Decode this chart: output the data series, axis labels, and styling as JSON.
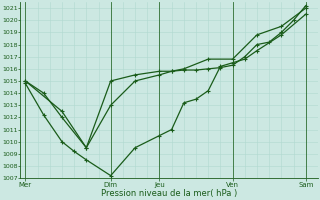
{
  "xlabel": "Pression niveau de la mer( hPa )",
  "background_color": "#cce8e2",
  "grid_color_minor": "#b0d8d0",
  "grid_color_major": "#2d6e30",
  "line_color": "#1a5c1a",
  "ylim": [
    1007,
    1021.5
  ],
  "ytick_min": 1007,
  "ytick_max": 1021,
  "xtick_labels": [
    "Mer",
    "Dim",
    "Jeu",
    "Ven",
    "Sam"
  ],
  "xtick_positions": [
    0,
    3.5,
    5.5,
    8.5,
    11.5
  ],
  "xlim": [
    -0.2,
    12.0
  ],
  "series": [
    {
      "x": [
        0,
        0.75,
        1.5,
        2.5,
        3.5,
        4.5,
        5.5,
        6.0,
        6.5,
        7.0,
        7.5,
        8.0,
        8.5,
        9.0,
        9.5,
        10.0,
        10.5,
        11.0,
        11.5
      ],
      "y": [
        1015.0,
        1014.0,
        1012.0,
        1009.5,
        1015.0,
        1015.5,
        1015.8,
        1015.8,
        1015.9,
        1015.9,
        1016.0,
        1016.1,
        1016.3,
        1017.0,
        1018.0,
        1018.2,
        1019.0,
        1020.0,
        1021.2
      ],
      "marker": "+"
    },
    {
      "x": [
        0,
        0.75,
        1.5,
        2.0,
        2.5,
        3.5,
        4.5,
        5.5,
        6.0,
        6.5,
        7.0,
        7.5,
        8.0,
        8.5,
        9.0,
        9.5,
        10.5,
        11.5
      ],
      "y": [
        1014.8,
        1012.2,
        1010.0,
        1009.2,
        1008.5,
        1007.2,
        1009.5,
        1010.5,
        1011.0,
        1013.2,
        1013.5,
        1014.2,
        1016.2,
        1016.5,
        1016.8,
        1017.5,
        1018.8,
        1020.5
      ],
      "marker": "+"
    },
    {
      "x": [
        0,
        1.5,
        2.5,
        3.5,
        4.5,
        5.5,
        6.0,
        6.5,
        7.5,
        8.5,
        9.5,
        10.5,
        11.5
      ],
      "y": [
        1015.0,
        1012.5,
        1009.5,
        1013.0,
        1015.0,
        1015.5,
        1015.8,
        1016.0,
        1016.8,
        1016.8,
        1018.8,
        1019.5,
        1021.0
      ],
      "marker": "+"
    }
  ],
  "vline_positions": [
    0,
    3.5,
    5.5,
    8.5,
    11.5
  ],
  "markersize": 2.5,
  "linewidth": 0.9
}
